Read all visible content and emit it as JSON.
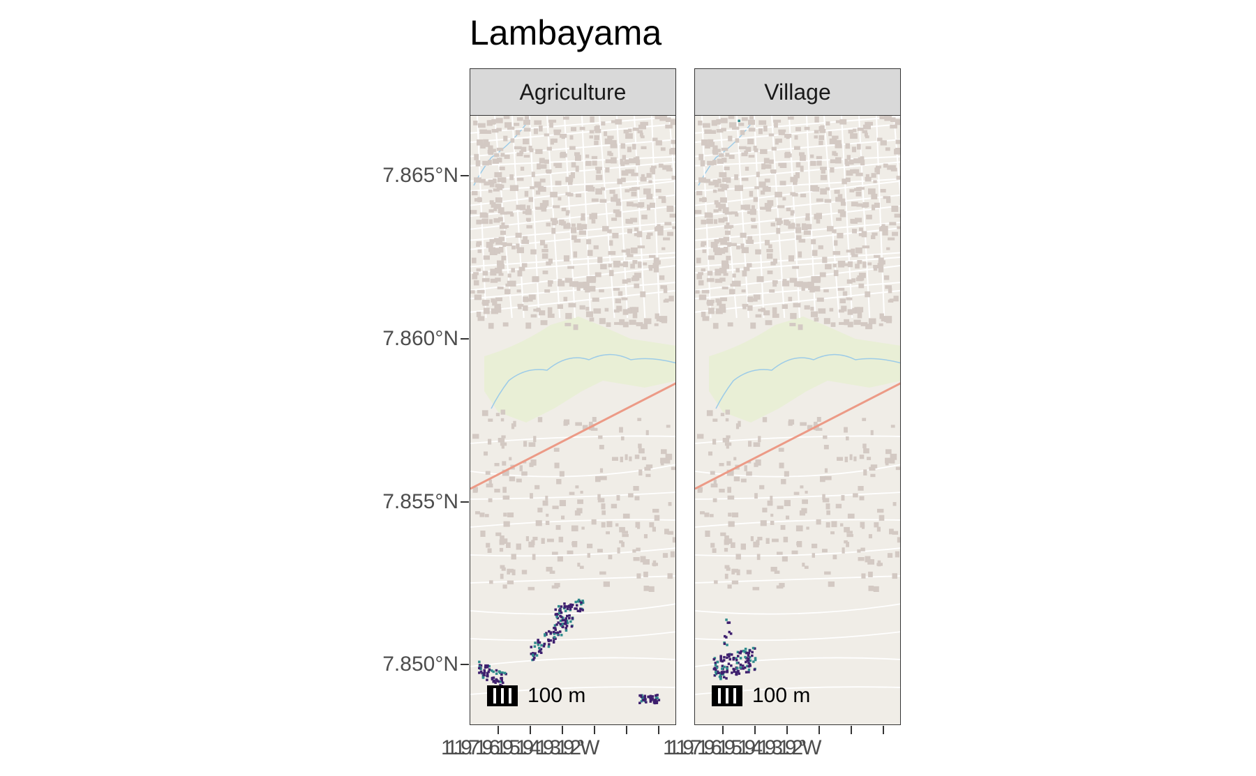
{
  "title": "Lambayama",
  "panels": [
    "Agriculture",
    "Village"
  ],
  "scale_bar": {
    "label": "100 m"
  },
  "y_axis": {
    "ticks": [
      "7.865°N",
      "7.860°N",
      "7.855°N",
      "7.850°N"
    ]
  },
  "x_axis": {
    "left_panel_labels": "11.19 11.197 11.196 11.195 11.194 11.193 11.192°W",
    "right_panel_labels": "11.197°W 11.196 11.195 11.194 11.193 11.192°W"
  },
  "x_tick_labels_rendered": {
    "left": "11.19.7196195194193192°W",
    "right": "11.19.7196195194193192°W"
  },
  "colors": {
    "basemap": "#f0ede7",
    "buildings": "#d3c9c3",
    "park": "#e9efd6",
    "river": "#9ccbe8",
    "main_road": "#ec9a86",
    "points_low": "#3e1f6e",
    "points_high": "#2f8b8c"
  }
}
